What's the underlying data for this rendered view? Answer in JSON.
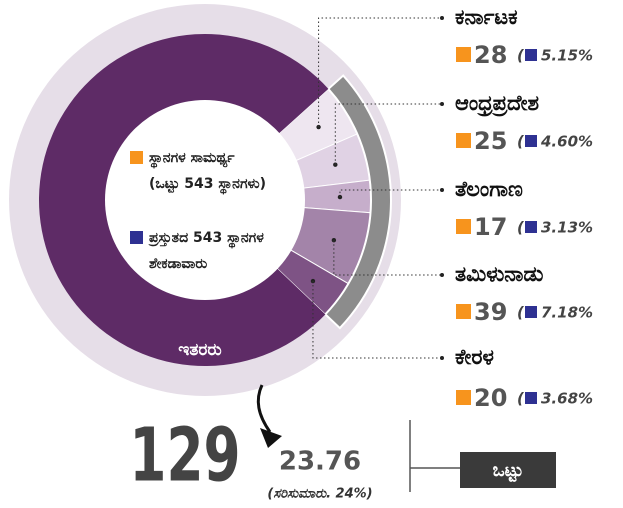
{
  "chart_data": {
    "type": "donut",
    "legend": [
      {
        "lines": [
          "ಸ್ಥಾನಗಳ ಸಾಮರ್ಥ್ಯ",
          "(ಒಟ್ಟು 543 ಸ್ಥಾನಗಳು)"
        ],
        "color": "#f7941d"
      },
      {
        "lines": [
          "ಪ್ರಸ್ತುತದ 543 ಸ್ಥಾನಗಳ",
          "ಶೇಕಡಾವಾರು"
        ],
        "color": "#2e3192"
      }
    ],
    "categories": [
      "ಕರ್ನಾಟಕ",
      "ಆಂಧ್ರಪ್ರದೇಶ",
      "ತೆಲಂಗಾಣ",
      "ತಮಿಳುನಾಡು",
      "ಕೇರಳ"
    ],
    "values": [
      28,
      25,
      17,
      39,
      20
    ],
    "color": "#f7941d",
    "segment_colors": [
      "#eee6f0",
      "#e0d2e4",
      "#c6aecb",
      "#a384a9",
      "#7e5385"
    ],
    "shares": {
      "values": [
        5.15,
        4.6,
        3.13,
        7.18,
        3.68
      ],
      "value_labels": [
        "5.15%",
        "4.60%",
        "3.13%",
        "7.18%",
        "3.68%"
      ],
      "color": "#2e3192"
    },
    "others": {
      "label": "ಇತರರು",
      "value": 414,
      "color": "#5e2b66"
    },
    "total": {
      "value": 129,
      "percent": 23.76,
      "approx": "(ಸರಿಸುಮಾರು. 24%)",
      "label": "ಒಟ್ಟು"
    }
  }
}
